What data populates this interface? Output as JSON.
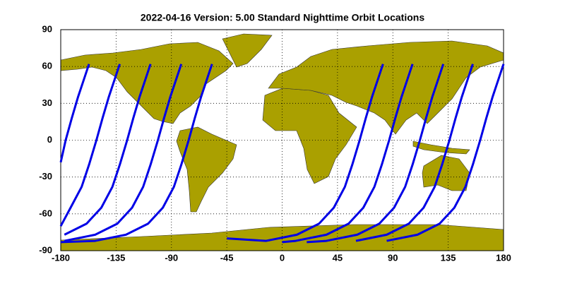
{
  "chart_data": {
    "type": "map",
    "title": "2022-04-16    Version: 5.00  Standard    Nighttime Orbit Locations",
    "xlim": [
      -180,
      180
    ],
    "ylim": [
      -90,
      90
    ],
    "xticks": [
      -180,
      -135,
      -90,
      -45,
      0,
      45,
      90,
      135,
      180
    ],
    "yticks": [
      -90,
      -60,
      -30,
      0,
      30,
      60,
      90
    ],
    "grid": true,
    "series": [
      {
        "color": "#0000e6",
        "x": [
          -157,
          -161,
          -166,
          -171,
          -176,
          -180
        ],
        "y": [
          62,
          50,
          35,
          18,
          0,
          -18
        ]
      },
      {
        "color": "#0000e6",
        "x": [
          -132,
          -136,
          -141,
          -146,
          -151,
          -157,
          -163,
          -172,
          -180
        ],
        "y": [
          62,
          50,
          35,
          18,
          0,
          -20,
          -38,
          -55,
          -70
        ]
      },
      {
        "color": "#0000e6",
        "x": [
          -107,
          -111,
          -116,
          -121,
          -126,
          -132,
          -138,
          -147,
          -159,
          -177
        ],
        "y": [
          62,
          50,
          35,
          18,
          0,
          -20,
          -38,
          -55,
          -68,
          -77
        ]
      },
      {
        "color": "#0000e6",
        "x": [
          -82,
          -86,
          -91,
          -96,
          -101,
          -107,
          -113,
          -122,
          -134,
          -152,
          -177
        ],
        "y": [
          62,
          50,
          35,
          18,
          0,
          -20,
          -38,
          -55,
          -68,
          -77,
          -82
        ]
      },
      {
        "color": "#0000e6",
        "x": [
          -57,
          -61,
          -66,
          -71,
          -76,
          -82,
          -88,
          -97,
          -109,
          -127,
          -152,
          -180
        ],
        "y": [
          62,
          50,
          35,
          18,
          0,
          -20,
          -38,
          -55,
          -68,
          -77,
          -82,
          -83
        ]
      },
      {
        "color": "#0000e6",
        "x": [
          82,
          78,
          73,
          68,
          63,
          57,
          51,
          42,
          30,
          12,
          -13,
          -45
        ],
        "y": [
          62,
          50,
          35,
          18,
          0,
          -20,
          -38,
          -55,
          -68,
          -77,
          -82,
          -80
        ]
      },
      {
        "color": "#0000e6",
        "x": [
          106,
          102,
          97,
          92,
          87,
          81,
          75,
          66,
          54,
          36,
          11,
          0
        ],
        "y": [
          62,
          50,
          35,
          18,
          0,
          -20,
          -38,
          -55,
          -68,
          -77,
          -82,
          -83
        ]
      },
      {
        "color": "#0000e6",
        "x": [
          131,
          127,
          122,
          117,
          112,
          106,
          100,
          91,
          79,
          61,
          36,
          20
        ],
        "y": [
          62,
          50,
          35,
          18,
          0,
          -20,
          -38,
          -55,
          -68,
          -77,
          -82,
          -83
        ]
      },
      {
        "color": "#0000e6",
        "x": [
          155,
          151,
          146,
          141,
          136,
          130,
          124,
          115,
          103,
          85,
          60
        ],
        "y": [
          62,
          50,
          35,
          18,
          0,
          -20,
          -38,
          -55,
          -68,
          -77,
          -82
        ]
      },
      {
        "color": "#0000e6",
        "x": [
          180,
          176,
          171,
          166,
          161,
          155,
          149,
          140,
          128,
          110,
          85
        ],
        "y": [
          62,
          50,
          35,
          18,
          0,
          -20,
          -38,
          -55,
          -68,
          -77,
          -82
        ]
      }
    ]
  }
}
